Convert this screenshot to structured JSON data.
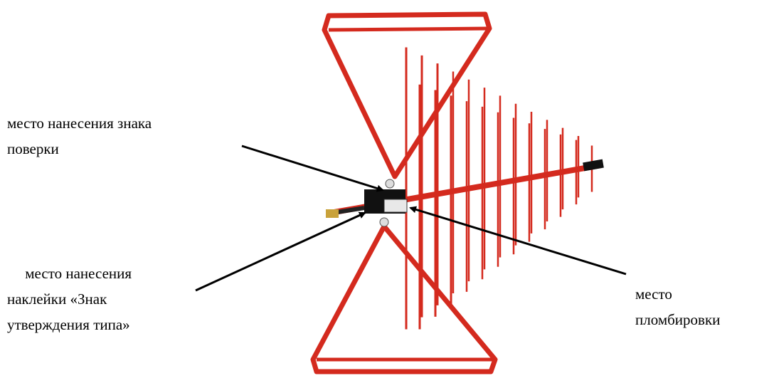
{
  "annotations": [
    {
      "lines": [
        "место нанесения знака",
        "поверки"
      ]
    },
    {
      "lines": [
        " место нанесения",
        "наклейки «Знак",
        "утверждения типа»"
      ]
    },
    {
      "lines": [
        "место",
        "пломбировки"
      ]
    }
  ]
}
